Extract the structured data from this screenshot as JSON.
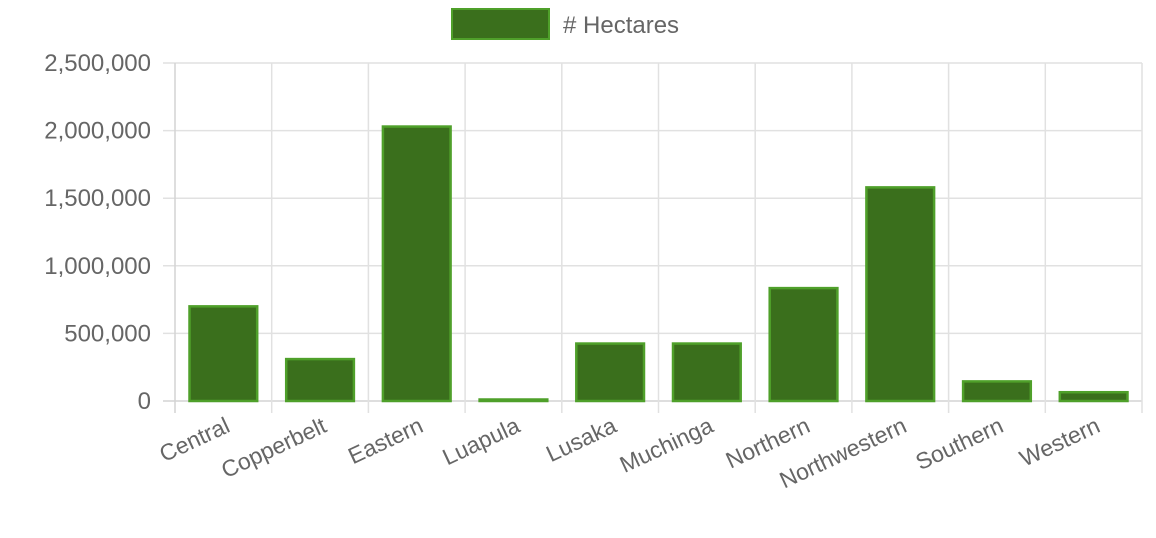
{
  "chart_data": {
    "type": "bar",
    "categories": [
      "Central",
      "Copperbelt",
      "Eastern",
      "Luapula",
      "Lusaka",
      "Muchinga",
      "Northern",
      "Northwestern",
      "Southern",
      "Western"
    ],
    "series": [
      {
        "name": "# Hectares",
        "values": [
          700000,
          310000,
          2030000,
          5000,
          425000,
          425000,
          835000,
          1580000,
          145000,
          65000
        ],
        "fill": "#3a6f1c",
        "border": "#4fa02a"
      }
    ],
    "y_tick_labels": [
      "0",
      "500,000",
      "1,000,000",
      "1,500,000",
      "2,000,000",
      "2,500,000"
    ],
    "ylim": [
      0,
      2500000
    ],
    "grid": true,
    "legend_position": "top"
  }
}
